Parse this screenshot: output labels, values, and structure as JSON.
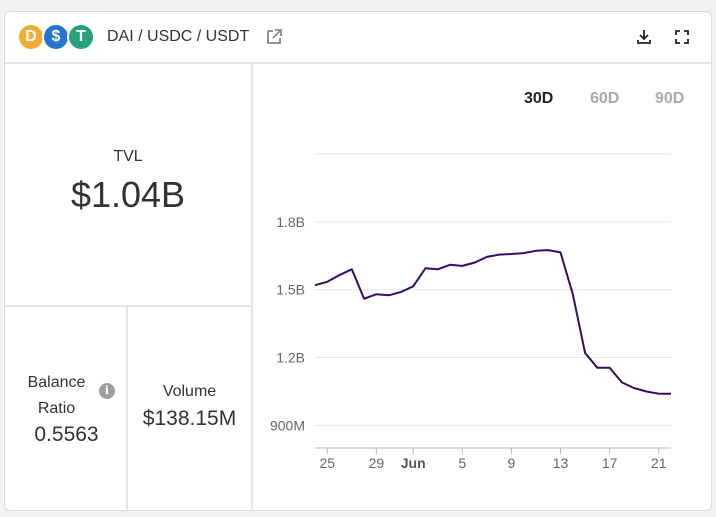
{
  "header": {
    "pair_label": "DAI / USDC / USDT",
    "tokens": [
      {
        "symbol": "DAI",
        "glyph": "D",
        "color": "#f5ac37"
      },
      {
        "symbol": "USDC",
        "glyph": "$",
        "color": "#2775ca"
      },
      {
        "symbol": "USDT",
        "glyph": "T",
        "color": "#26a17b"
      }
    ],
    "icons": [
      "external-link-icon",
      "download-icon",
      "fullscreen-icon"
    ]
  },
  "stats": {
    "tvl_label": "TVL",
    "tvl_value": "$1.04B",
    "ratio_label": "Balance Ratio",
    "ratio_value": "0.5563",
    "volume_label": "Volume",
    "volume_value": "$138.15M",
    "info_glyph": "i"
  },
  "ranges": [
    {
      "label": "30D",
      "active": true
    },
    {
      "label": "60D",
      "active": false
    },
    {
      "label": "90D",
      "active": false
    }
  ],
  "chart_data": {
    "type": "line",
    "line_color": "#3b0a63",
    "x_tick_labels": [
      "25",
      "29",
      "Jun",
      "5",
      "9",
      "13",
      "17",
      "21"
    ],
    "y_tick_labels": [
      "900M",
      "1.2B",
      "1.5B",
      "1.8B"
    ],
    "y_ticks": [
      900,
      1200,
      1500,
      1800
    ],
    "ylim": [
      800,
      2100
    ],
    "grid": true,
    "series": [
      {
        "unit": "M",
        "x": [
          24,
          25,
          26,
          27,
          28,
          29,
          30,
          31,
          32,
          33,
          34,
          35,
          36,
          37,
          38,
          39,
          40,
          41,
          42,
          43,
          44,
          45,
          46,
          47,
          48,
          49,
          50,
          51,
          52,
          53
        ],
        "values": [
          1520,
          1535,
          1565,
          1590,
          1460,
          1480,
          1475,
          1490,
          1515,
          1595,
          1590,
          1610,
          1605,
          1620,
          1645,
          1655,
          1658,
          1662,
          1672,
          1675,
          1665,
          1480,
          1220,
          1155,
          1155,
          1090,
          1065,
          1050,
          1040,
          1040
        ]
      }
    ],
    "x_tick_positions": [
      25,
      29,
      32,
      36,
      40,
      44,
      48,
      52
    ]
  }
}
